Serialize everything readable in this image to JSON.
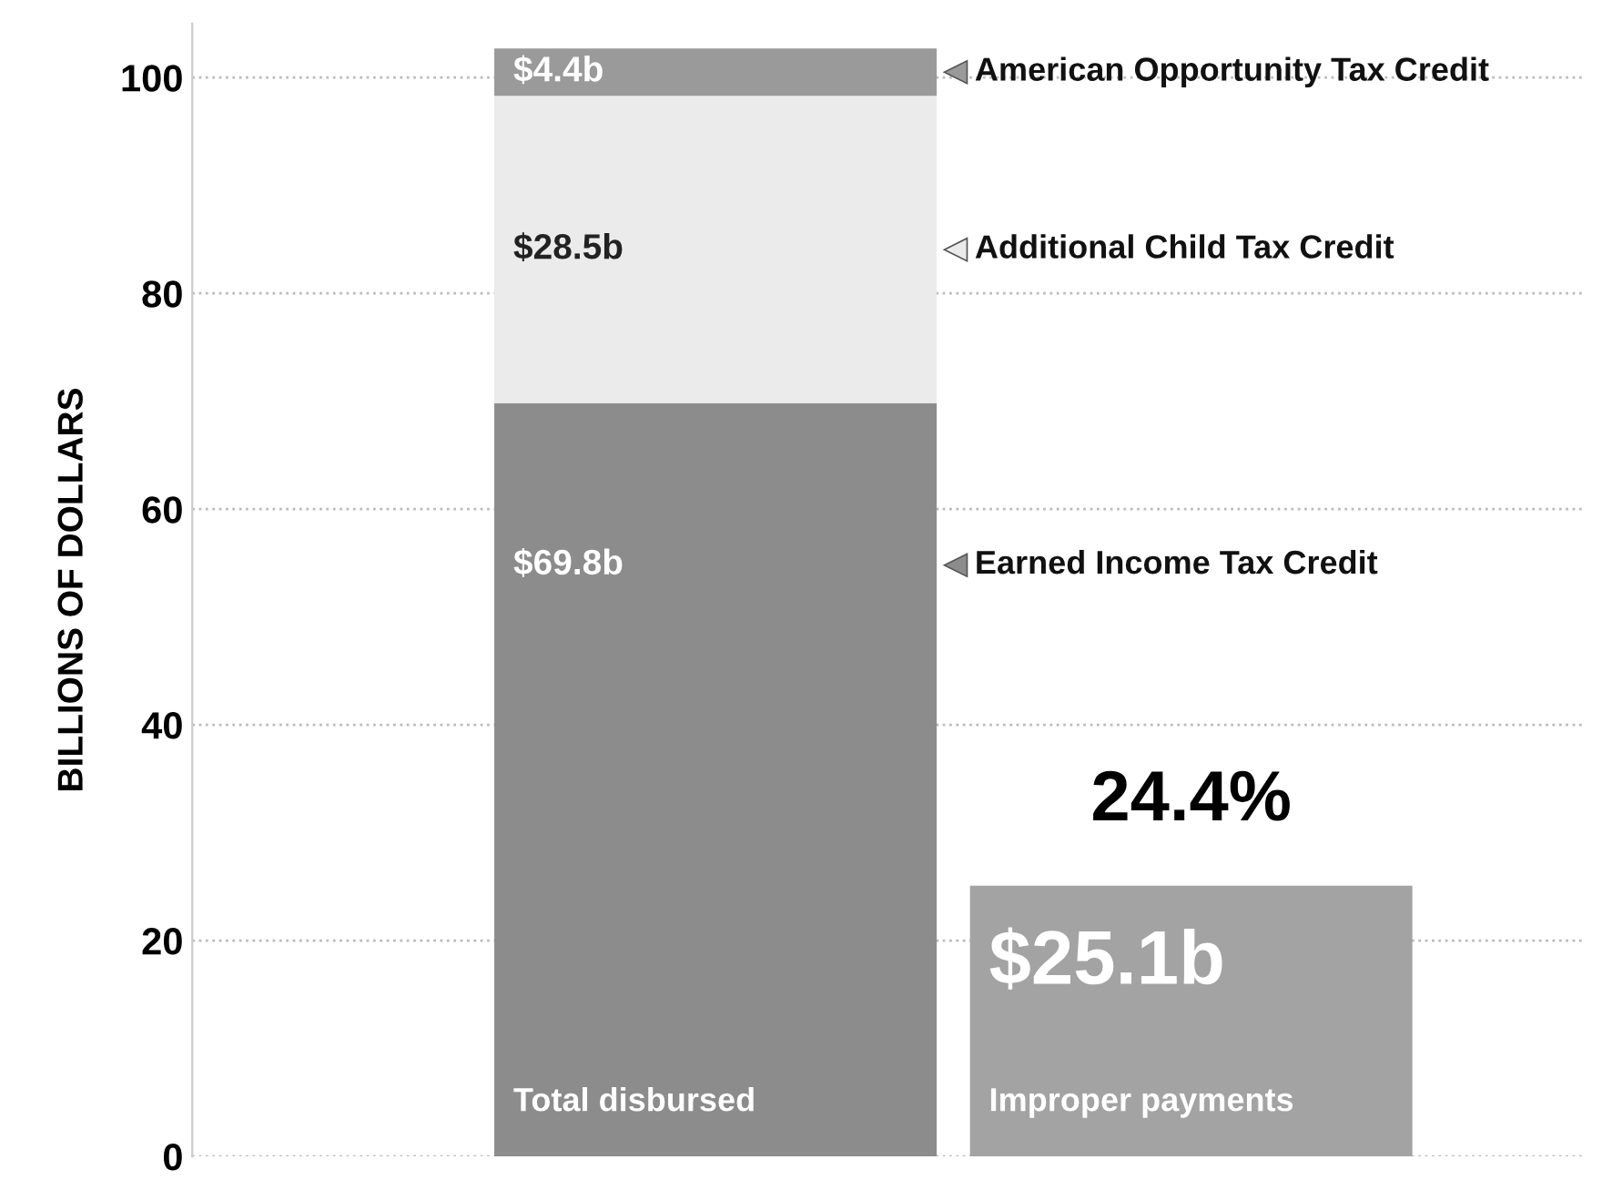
{
  "chart_data": {
    "type": "bar",
    "stacked": true,
    "ylabel": "BILLIONS OF DOLLARS",
    "categories": [
      "Total disbursed",
      "Improper payments"
    ],
    "series": [
      {
        "name": "Earned Income Tax Credit",
        "color": "#8c8c8c",
        "values": [
          69.8,
          null
        ],
        "value_labels": [
          "$69.8b",
          null
        ]
      },
      {
        "name": "Additional Child Tax Credit",
        "color": "#ebebeb",
        "values": [
          28.5,
          null
        ],
        "value_labels": [
          "$28.5b",
          null
        ]
      },
      {
        "name": "American Opportunity Tax Credit",
        "color": "#9a9a9a",
        "values": [
          4.4,
          null
        ],
        "value_labels": [
          "$4.4b",
          null
        ]
      },
      {
        "color": "#a3a3a3",
        "values": [
          null,
          25.1
        ],
        "value_labels": [
          null,
          "$25.1b"
        ]
      }
    ],
    "annotations": [
      {
        "text": "24.4%",
        "x": "Improper payments",
        "y": 25.1
      }
    ],
    "ylim": [
      0,
      105
    ],
    "yticks": [
      0,
      20,
      40,
      60,
      80,
      100
    ],
    "grid": "y",
    "legend": "right",
    "tick_labels": "y"
  }
}
